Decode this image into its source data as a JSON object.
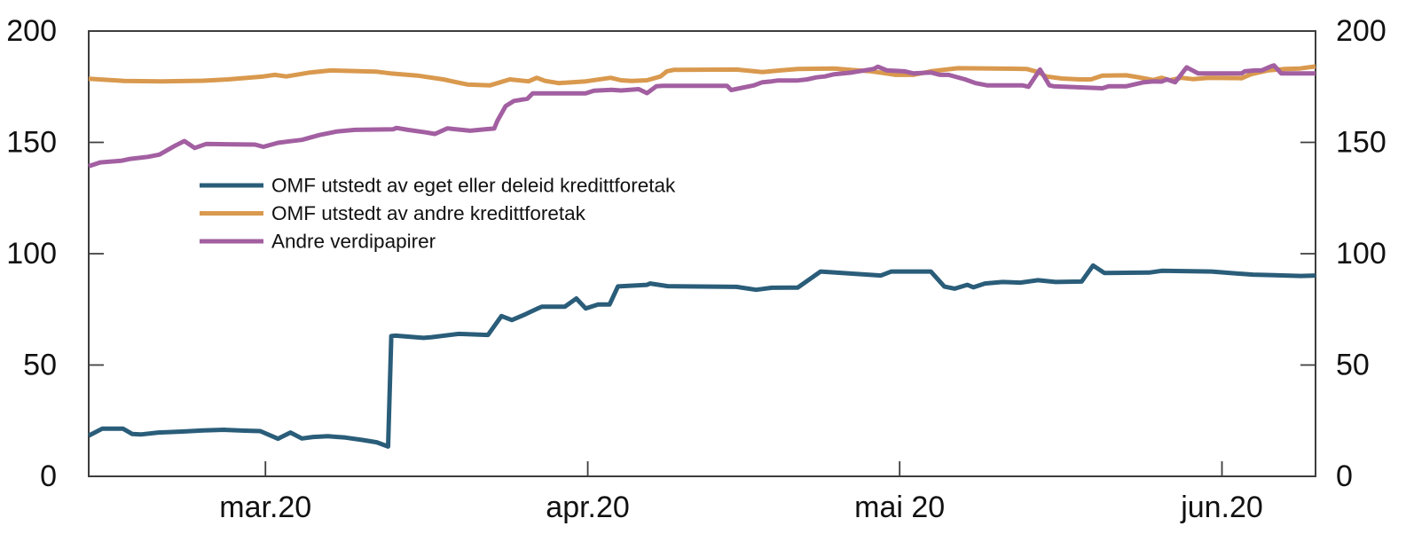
{
  "chart_data": {
    "type": "line",
    "title": "",
    "xlabel": "",
    "ylabel": "",
    "ylim": [
      0,
      200
    ],
    "x_domain": [
      0,
      118
    ],
    "grid": false,
    "box": true,
    "dual_y_axis": true,
    "legend_position": "inside-upper-left",
    "axis_color": "#3d3d3d",
    "y_ticks": [
      {
        "value": 0,
        "label": "0"
      },
      {
        "value": 50,
        "label": "50"
      },
      {
        "value": 100,
        "label": "100"
      },
      {
        "value": 150,
        "label": "150"
      },
      {
        "value": 200,
        "label": "200"
      }
    ],
    "x_ticks": [
      {
        "x": 17,
        "label": "mar.20"
      },
      {
        "x": 48,
        "label": "apr.20"
      },
      {
        "x": 78,
        "label": "mai 20"
      },
      {
        "x": 109,
        "label": "jun.20"
      }
    ],
    "series": [
      {
        "name": "OMF utstedt av eget eller deleid kredittforetak",
        "color": "#2A5D79",
        "points": [
          [
            0,
            18.3
          ],
          [
            1.3,
            21.4
          ],
          [
            3.3,
            21.4
          ],
          [
            4.2,
            19.0
          ],
          [
            5,
            18.8
          ],
          [
            6.7,
            19.7
          ],
          [
            9,
            20.1
          ],
          [
            11,
            20.6
          ],
          [
            13,
            20.9
          ],
          [
            15,
            20.5
          ],
          [
            16.5,
            20.3
          ],
          [
            18.2,
            16.9
          ],
          [
            19.4,
            19.7
          ],
          [
            20.5,
            17.0
          ],
          [
            21.6,
            17.7
          ],
          [
            23,
            18.0
          ],
          [
            24.7,
            17.4
          ],
          [
            26.4,
            16.3
          ],
          [
            27.7,
            15.3
          ],
          [
            28.8,
            13.4
          ],
          [
            29.1,
            63.0
          ],
          [
            29.5,
            63.2
          ],
          [
            32.2,
            62.2
          ],
          [
            33,
            62.5
          ],
          [
            35.6,
            64.0
          ],
          [
            38.4,
            63.5
          ],
          [
            39.7,
            72.0
          ],
          [
            40.7,
            70.2
          ],
          [
            42,
            72.8
          ],
          [
            43.1,
            75.2
          ],
          [
            43.6,
            76.2
          ],
          [
            45.8,
            76.2
          ],
          [
            46.9,
            79.9
          ],
          [
            47.8,
            75.4
          ],
          [
            49,
            77.2
          ],
          [
            50.1,
            77.2
          ],
          [
            50.9,
            85.3
          ],
          [
            53.7,
            86.0
          ],
          [
            54,
            86.6
          ],
          [
            55.7,
            85.4
          ],
          [
            62.3,
            85.1
          ],
          [
            64.2,
            83.8
          ],
          [
            65.7,
            84.7
          ],
          [
            68.2,
            84.8
          ],
          [
            70.4,
            92.0
          ],
          [
            76.2,
            90.2
          ],
          [
            77.2,
            92.0
          ],
          [
            81,
            92.0
          ],
          [
            82.3,
            85.2
          ],
          [
            83.3,
            84.3
          ],
          [
            84.5,
            86.0
          ],
          [
            85.1,
            84.9
          ],
          [
            86.2,
            86.6
          ],
          [
            87.9,
            87.3
          ],
          [
            89.6,
            87.0
          ],
          [
            91.3,
            88.1
          ],
          [
            93,
            87.3
          ],
          [
            95.5,
            87.5
          ],
          [
            96.6,
            94.7
          ],
          [
            97.7,
            91.3
          ],
          [
            102,
            91.5
          ],
          [
            103.2,
            92.3
          ],
          [
            108,
            92.0
          ],
          [
            109.8,
            91.3
          ],
          [
            112,
            90.6
          ],
          [
            113.7,
            90.4
          ],
          [
            116.6,
            90.0
          ],
          [
            118,
            90.2
          ]
        ]
      },
      {
        "name": "OMF utstedt av andre kredittforetak",
        "color": "#D9994E",
        "points": [
          [
            0,
            178.6
          ],
          [
            3.4,
            177.6
          ],
          [
            7,
            177.4
          ],
          [
            11,
            177.7
          ],
          [
            13.4,
            178.3
          ],
          [
            16.8,
            179.6
          ],
          [
            17.9,
            180.3
          ],
          [
            19,
            179.6
          ],
          [
            21.3,
            181.4
          ],
          [
            23.3,
            182.3
          ],
          [
            26,
            182.0
          ],
          [
            27.6,
            181.8
          ],
          [
            29,
            181.0
          ],
          [
            31.6,
            180.0
          ],
          [
            34.1,
            178.3
          ],
          [
            36.4,
            176.0
          ],
          [
            38.6,
            175.6
          ],
          [
            40.5,
            178.3
          ],
          [
            42.3,
            177.4
          ],
          [
            43.1,
            179.0
          ],
          [
            43.9,
            177.6
          ],
          [
            45.2,
            176.6
          ],
          [
            46.5,
            177.0
          ],
          [
            47.8,
            177.4
          ],
          [
            50.2,
            179.0
          ],
          [
            51.2,
            177.9
          ],
          [
            52.2,
            177.6
          ],
          [
            53.7,
            177.9
          ],
          [
            55,
            179.6
          ],
          [
            55.6,
            181.9
          ],
          [
            56.3,
            182.6
          ],
          [
            62.3,
            182.7
          ],
          [
            64.8,
            181.6
          ],
          [
            66.5,
            182.3
          ],
          [
            68.2,
            183.0
          ],
          [
            71.7,
            183.2
          ],
          [
            73.4,
            182.5
          ],
          [
            75.1,
            182.0
          ],
          [
            76.8,
            180.9
          ],
          [
            77.6,
            180.3
          ],
          [
            79.3,
            180.3
          ],
          [
            81,
            181.9
          ],
          [
            83.6,
            183.3
          ],
          [
            87,
            183.2
          ],
          [
            90.2,
            183.0
          ],
          [
            91.3,
            181.6
          ],
          [
            92.1,
            179.6
          ],
          [
            93.6,
            178.7
          ],
          [
            95.3,
            178.3
          ],
          [
            96.4,
            178.3
          ],
          [
            97.5,
            180.0
          ],
          [
            99.8,
            180.1
          ],
          [
            100.9,
            179.3
          ],
          [
            102.4,
            178.0
          ],
          [
            103.2,
            179.0
          ],
          [
            104,
            177.9
          ],
          [
            105.1,
            179.0
          ],
          [
            106.2,
            178.4
          ],
          [
            107.7,
            179.0
          ],
          [
            110.9,
            178.8
          ],
          [
            111.8,
            180.6
          ],
          [
            113.4,
            182.3
          ],
          [
            115.1,
            183.0
          ],
          [
            116.5,
            183.2
          ],
          [
            118,
            184.1
          ]
        ]
      },
      {
        "name": "Andre verdipapirer",
        "color": "#A25FA1",
        "points": [
          [
            0,
            139.3
          ],
          [
            1.1,
            141.0
          ],
          [
            3.2,
            141.8
          ],
          [
            4,
            142.6
          ],
          [
            5.7,
            143.5
          ],
          [
            6.8,
            144.5
          ],
          [
            8.3,
            148.5
          ],
          [
            9.2,
            150.6
          ],
          [
            10.2,
            147.5
          ],
          [
            11.3,
            149.3
          ],
          [
            16,
            149.0
          ],
          [
            16.8,
            148.0
          ],
          [
            18.2,
            149.8
          ],
          [
            19.4,
            150.5
          ],
          [
            20.5,
            151.1
          ],
          [
            22.2,
            153.3
          ],
          [
            23.9,
            154.9
          ],
          [
            25.6,
            155.6
          ],
          [
            29.3,
            155.9
          ],
          [
            29.6,
            156.5
          ],
          [
            30.7,
            155.6
          ],
          [
            32.4,
            154.5
          ],
          [
            33.3,
            153.8
          ],
          [
            34.5,
            156.3
          ],
          [
            36.7,
            155.2
          ],
          [
            38,
            155.8
          ],
          [
            39,
            156.2
          ],
          [
            39.3,
            159.6
          ],
          [
            40.1,
            166.3
          ],
          [
            40.9,
            168.6
          ],
          [
            42.2,
            169.6
          ],
          [
            42.7,
            172.0
          ],
          [
            47.8,
            172.0
          ],
          [
            48.6,
            173.2
          ],
          [
            50.3,
            173.6
          ],
          [
            51.2,
            173.3
          ],
          [
            52.9,
            173.9
          ],
          [
            53.7,
            172.1
          ],
          [
            54.6,
            175.2
          ],
          [
            55.2,
            175.4
          ],
          [
            61.4,
            175.4
          ],
          [
            61.8,
            173.5
          ],
          [
            64,
            175.6
          ],
          [
            64.8,
            177.0
          ],
          [
            65.7,
            177.4
          ],
          [
            66.3,
            177.8
          ],
          [
            68.2,
            177.8
          ],
          [
            69.1,
            178.3
          ],
          [
            70,
            179.2
          ],
          [
            70.8,
            179.6
          ],
          [
            71.7,
            180.6
          ],
          [
            73.4,
            181.4
          ],
          [
            75.5,
            183.0
          ],
          [
            75.9,
            184.0
          ],
          [
            76.8,
            182.3
          ],
          [
            78.5,
            181.9
          ],
          [
            79.3,
            181.0
          ],
          [
            81,
            181.4
          ],
          [
            81.9,
            180.3
          ],
          [
            82.7,
            180.3
          ],
          [
            84.3,
            178.3
          ],
          [
            85.3,
            176.6
          ],
          [
            86.4,
            175.6
          ],
          [
            89.8,
            175.6
          ],
          [
            90.4,
            175.0
          ],
          [
            91.5,
            182.7
          ],
          [
            92.4,
            175.6
          ],
          [
            92.8,
            175.2
          ],
          [
            97.5,
            174.3
          ],
          [
            98.1,
            175.2
          ],
          [
            99.8,
            175.2
          ],
          [
            101.5,
            177.0
          ],
          [
            102.4,
            177.4
          ],
          [
            103.2,
            177.3
          ],
          [
            103.7,
            178.3
          ],
          [
            104.5,
            177.0
          ],
          [
            105.6,
            183.7
          ],
          [
            106.7,
            181.0
          ],
          [
            110.9,
            181.0
          ],
          [
            111.2,
            181.9
          ],
          [
            112.2,
            182.3
          ],
          [
            112.8,
            182.3
          ],
          [
            113.7,
            184.1
          ],
          [
            114,
            184.6
          ],
          [
            114.7,
            181.0
          ],
          [
            118,
            181.0
          ]
        ]
      }
    ],
    "legend": {
      "swatch_x1": 225,
      "swatch_x2": 297,
      "text_x": 306,
      "first_row_y": 209,
      "row_spacing": 31.5
    }
  }
}
